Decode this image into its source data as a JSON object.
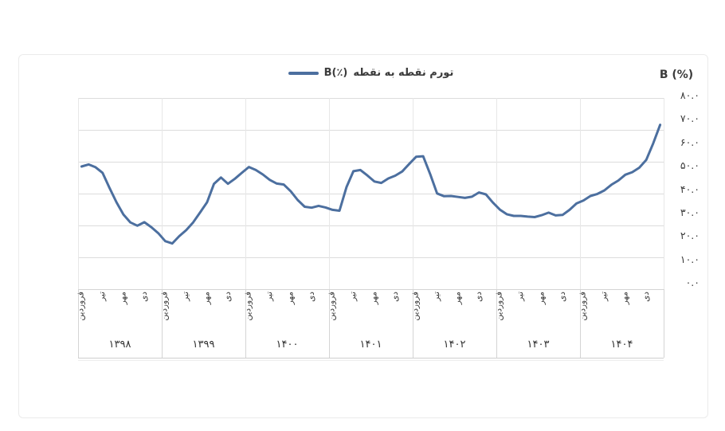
{
  "legend": {
    "latin_label": "B(٪)",
    "series_label": "تورم نقطه به نقطه"
  },
  "axis_title_right": "B (%)",
  "y_axis": {
    "tick_labels": [
      "۸۰.۰",
      "۷۰.۰",
      "۶۰.۰",
      "۵۰.۰",
      "۴۰.۰",
      "۳۰.۰",
      "۲۰.۰",
      "۱۰.۰",
      "۰.۰"
    ]
  },
  "x_axis": {
    "month_tick_labels": [
      "فروردین",
      "تیر",
      "مهر",
      "دی"
    ],
    "year_labels": [
      "۱۳۹۸",
      "۱۳۹۹",
      "۱۴۰۰",
      "۱۴۰۱",
      "۱۴۰۲",
      "۱۴۰۳",
      "۱۴۰۴"
    ]
  },
  "colors": {
    "line": "#4c6f9f",
    "gridline": "#dcdcdc",
    "text": "#3c3c3c"
  },
  "chart_data": {
    "type": "line",
    "title": "",
    "legend_position": "top-center",
    "grid": "horizontal",
    "ylim": [
      0,
      80
    ],
    "y_tick_values": [
      80,
      70,
      60,
      50,
      40,
      30,
      20,
      10,
      0
    ],
    "x_tick_months": [
      "فروردین",
      "تیر",
      "مهر",
      "دی"
    ],
    "x_note": "monthly points, Farvardin 1398 to Esfand 1404",
    "series": [
      {
        "name": "تورم نقطه به نقطه B(٪)",
        "values_by_year": [
          {
            "year": "۱۳۹۸",
            "values": [
              49.7,
              50.6,
              49.4,
              47.0,
              40.6,
              34.4,
              29.2,
              25.8,
              24.4,
              25.9,
              23.8,
              21.2
            ]
          },
          {
            "year": "۱۳۹۹",
            "values": [
              17.8,
              16.8,
              19.9,
              22.5,
              25.8,
              30.1,
              34.4,
              42.3,
              45.0,
              42.3,
              44.5,
              47.0
            ]
          },
          {
            "year": "۱۴۰۰",
            "values": [
              49.5,
              48.2,
              46.3,
              44.0,
              42.4,
              42.0,
              39.1,
              35.4,
              32.5,
              32.1,
              32.9,
              32.2
            ]
          },
          {
            "year": "۱۴۰۱",
            "values": [
              31.2,
              30.8,
              40.9,
              47.7,
              48.2,
              45.9,
              43.3,
              42.7,
              44.6,
              45.8,
              47.6,
              50.8
            ]
          },
          {
            "year": "۱۴۰۲",
            "values": [
              53.9,
              54.1,
              46.5,
              38.2,
              37.0,
              37.1,
              36.7,
              36.3,
              36.8,
              38.6,
              37.8,
              34.3
            ]
          },
          {
            "year": "۱۴۰۳",
            "values": [
              31.3,
              29.3,
              28.6,
              28.6,
              28.3,
              28.1,
              28.9,
              30.0,
              28.8,
              29.0,
              31.2,
              33.9
            ]
          },
          {
            "year": "۱۴۰۴",
            "values": [
              35.2,
              37.1,
              38.0,
              39.5,
              41.9,
              43.7,
              46.2,
              47.3,
              49.2,
              52.5,
              59.6,
              67.5
            ]
          }
        ]
      }
    ]
  }
}
